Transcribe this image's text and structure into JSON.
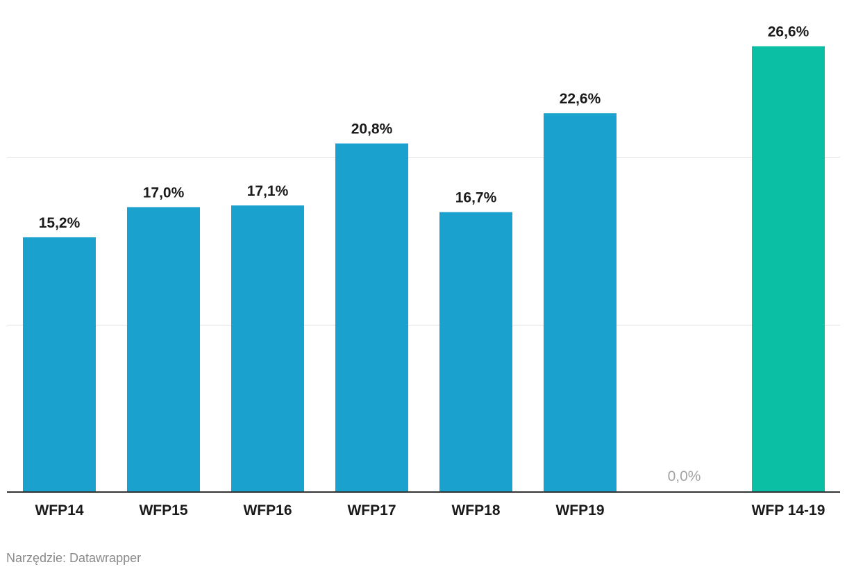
{
  "chart_data": {
    "type": "bar",
    "categories": [
      "WFP14",
      "WFP15",
      "WFP16",
      "WFP17",
      "WFP18",
      "WFP19",
      "",
      "WFP 14-19"
    ],
    "values": [
      15.2,
      17.0,
      17.1,
      20.8,
      16.7,
      22.6,
      0.0,
      26.6
    ],
    "value_labels": [
      "15,2%",
      "17,0%",
      "17,1%",
      "20,8%",
      "16,7%",
      "22,6%",
      "0,0%",
      "26,6%"
    ],
    "bar_colors": [
      "#1aa1cd",
      "#1aa1cd",
      "#1aa1cd",
      "#1aa1cd",
      "#1aa1cd",
      "#1aa1cd",
      "#1aa1cd",
      "#0abfa3"
    ],
    "ylim": [
      0,
      30
    ],
    "gridlines": [
      10,
      20
    ],
    "grid": true,
    "title": "",
    "xlabel": "",
    "ylabel": ""
  },
  "footer": {
    "source_text": "Narzędzie: Datawrapper"
  }
}
